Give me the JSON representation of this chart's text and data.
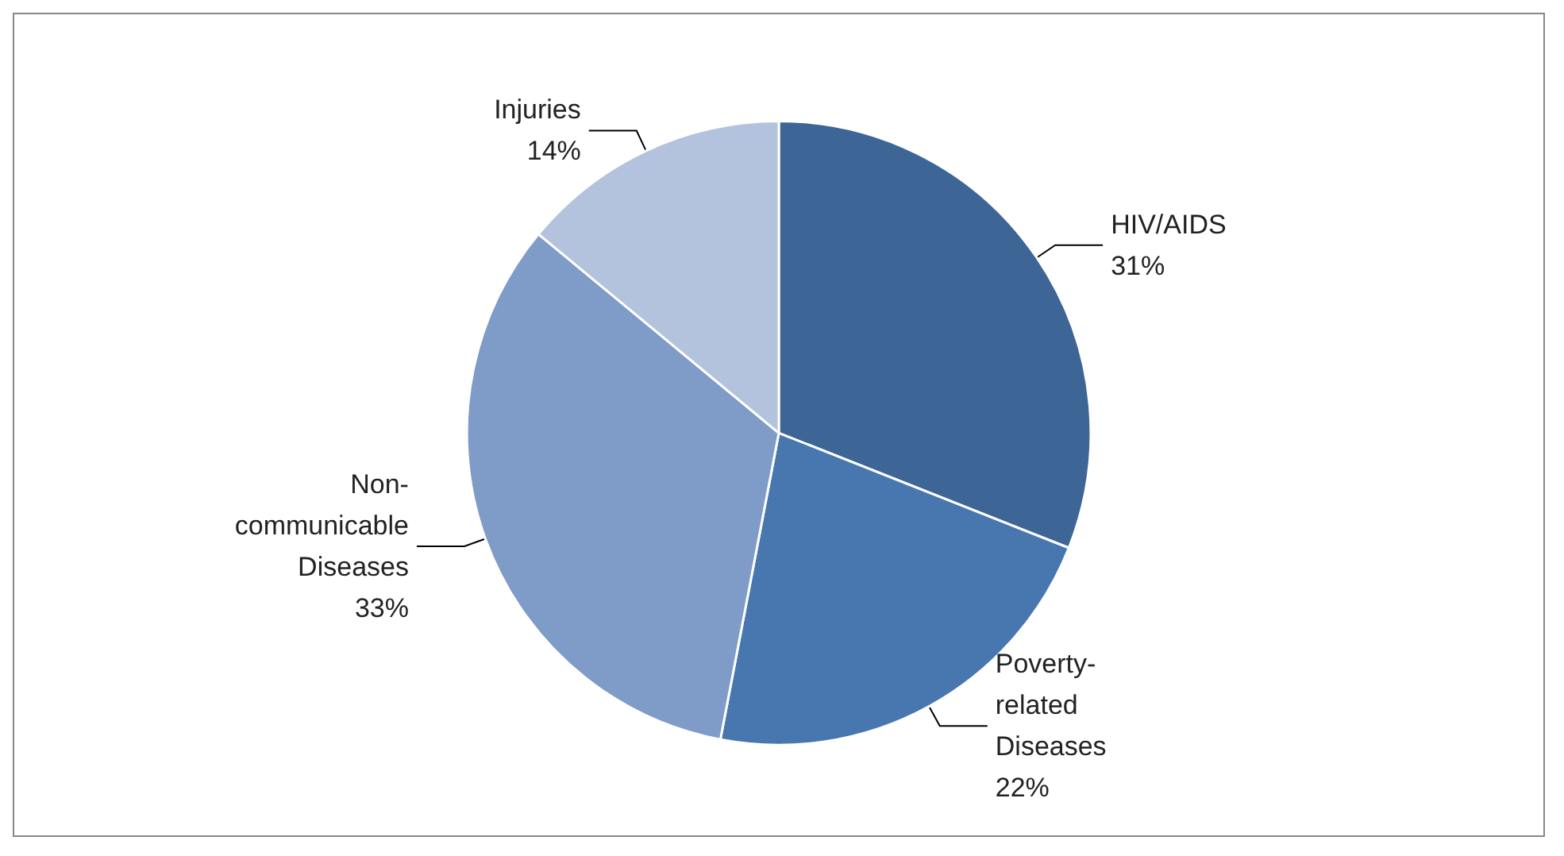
{
  "chart_data": {
    "type": "pie",
    "categories": [
      "HIV/AIDS",
      "Poverty-related Diseases",
      "Non-communicable Diseases",
      "Injuries"
    ],
    "values": [
      31,
      22,
      33,
      14
    ],
    "value_labels": [
      "31%",
      "22%",
      "33%",
      "14%"
    ],
    "colors": [
      "#3d6596",
      "#4877b0",
      "#7f9bc7",
      "#b3c3de"
    ],
    "legend": false
  }
}
